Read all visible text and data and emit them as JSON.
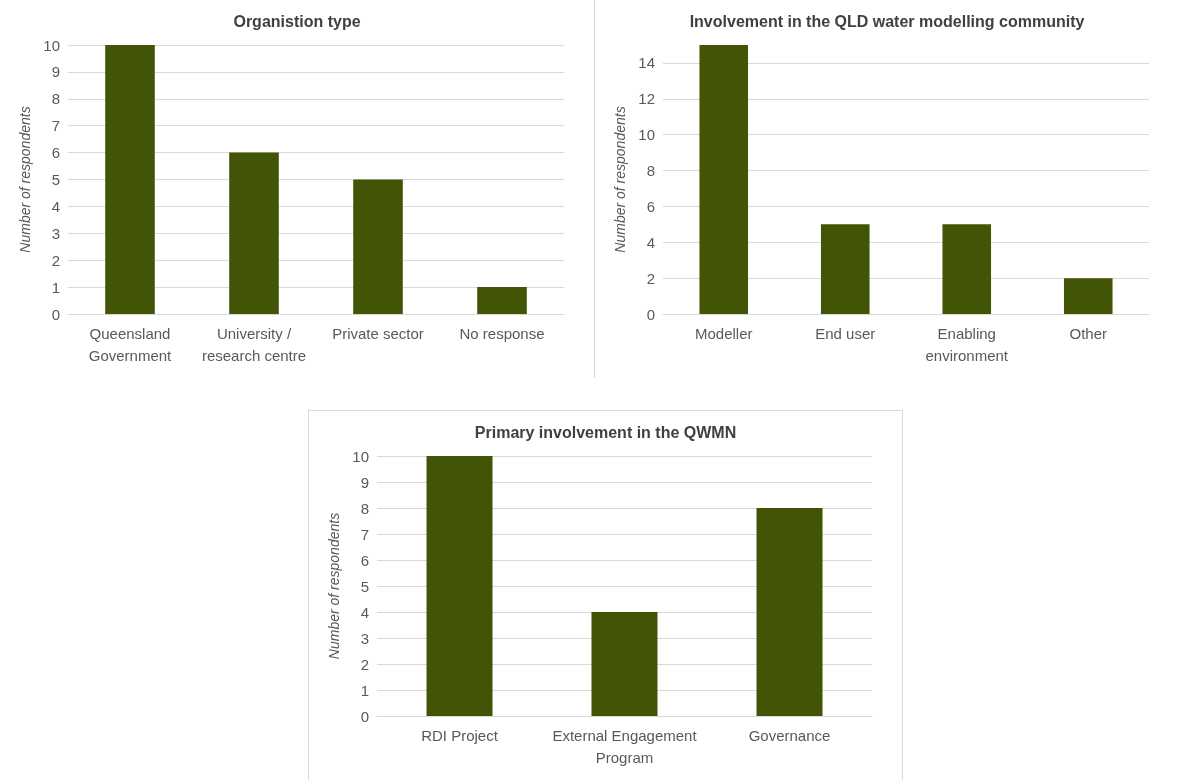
{
  "chart_data": [
    {
      "type": "bar",
      "title": "Organistion type",
      "ylabel": "Number of respondents",
      "categories": [
        "Queensland Government",
        "University / research centre",
        "Private sector",
        "No response"
      ],
      "values": [
        10,
        6,
        5,
        1
      ],
      "color": "#425506",
      "ylim": [
        0,
        10
      ],
      "yticks": [
        0,
        1,
        2,
        3,
        4,
        5,
        6,
        7,
        8,
        9,
        10
      ],
      "grid": "y"
    },
    {
      "type": "bar",
      "title": "Involvement in the QLD water modelling community",
      "ylabel": "Number of respondents",
      "categories": [
        "Modeller",
        "End user",
        "Enabling environment",
        "Other"
      ],
      "values": [
        15,
        5,
        5,
        2
      ],
      "color": "#425506",
      "ylim": [
        0,
        15
      ],
      "yticks": [
        0,
        2,
        4,
        6,
        8,
        10,
        12,
        14
      ],
      "grid": "y"
    },
    {
      "type": "bar",
      "title": "Primary involvement in the QWMN",
      "ylabel": "Number of respondents",
      "categories": [
        "RDI Project",
        "External Engagement Program",
        "Governance"
      ],
      "values": [
        10,
        4,
        8
      ],
      "color": "#425506",
      "ylim": [
        0,
        10
      ],
      "yticks": [
        0,
        1,
        2,
        3,
        4,
        5,
        6,
        7,
        8,
        9,
        10
      ],
      "grid": "y"
    }
  ]
}
